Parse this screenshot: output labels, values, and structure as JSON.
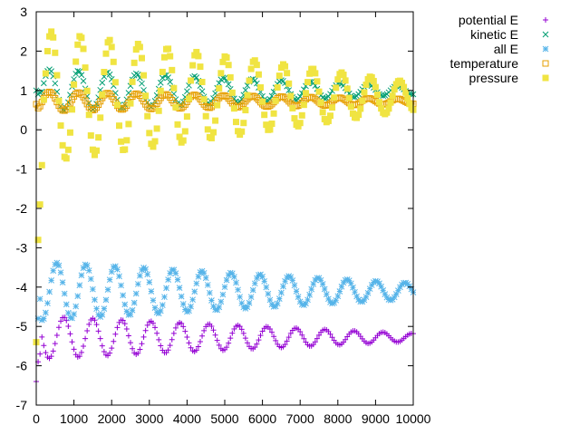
{
  "chart_data": {
    "type": "scatter",
    "title": "",
    "xlabel": "",
    "ylabel": "",
    "xlim": [
      0,
      10000
    ],
    "ylim": [
      -7,
      3
    ],
    "xticks": [
      0,
      1000,
      2000,
      3000,
      4000,
      5000,
      6000,
      7000,
      8000,
      9000,
      10000
    ],
    "yticks": [
      -7,
      -6,
      -5,
      -4,
      -3,
      -2,
      -1,
      0,
      1,
      2,
      3
    ],
    "grid": false,
    "legend_position": "outside-right",
    "x_sampling": {
      "start": 0,
      "step": 50,
      "end": 10000
    },
    "series": [
      {
        "name": "potential E",
        "marker": "plus",
        "color": "#9400d3",
        "model": {
          "mean": -5.28,
          "amplitude": [
            0.55,
            0.1
          ],
          "period": 770,
          "phase": 1.9,
          "glitch": [
            [
              0,
              -6.4
            ],
            [
              50,
              -5.9
            ],
            [
              100,
              -5.7
            ]
          ]
        },
        "values": []
      },
      {
        "name": "kinetic E",
        "marker": "cross",
        "color": "#009e73",
        "model": {
          "mean": 1.0,
          "amplitude": [
            0.55,
            0.1
          ],
          "period": 770,
          "phase": 5.0,
          "glitch": [
            [
              0,
              1.0
            ],
            [
              50,
              0.9
            ],
            [
              100,
              0.95
            ]
          ]
        },
        "values": []
      },
      {
        "name": "all E",
        "marker": "star",
        "color": "#56b4e9",
        "model": {
          "mean": -4.1,
          "amplitude": [
            0.75,
            0.2
          ],
          "period": 770,
          "phase": 3.4,
          "glitch": [
            [
              0,
              -5.4
            ],
            [
              50,
              -4.8
            ],
            [
              100,
              -4.3
            ]
          ]
        },
        "values": []
      },
      {
        "name": "temperature",
        "marker": "open-square",
        "color": "#e69f00",
        "model": {
          "mean": 0.72,
          "amplitude": [
            0.25,
            0.06
          ],
          "period": 770,
          "phase": 5.0,
          "glitch": [
            [
              0,
              0.65
            ],
            [
              50,
              0.55
            ],
            [
              100,
              0.6
            ]
          ]
        },
        "values": []
      },
      {
        "name": "pressure",
        "marker": "filled-square",
        "color": "#f0e442",
        "model": {
          "mean": 0.85,
          "amplitude": [
            1.7,
            0.35
          ],
          "period": 770,
          "phase": 4.6,
          "glitch": [
            [
              0,
              -5.4
            ],
            [
              50,
              -2.8
            ],
            [
              100,
              -1.9
            ],
            [
              150,
              -0.9
            ]
          ]
        },
        "values": []
      }
    ]
  }
}
